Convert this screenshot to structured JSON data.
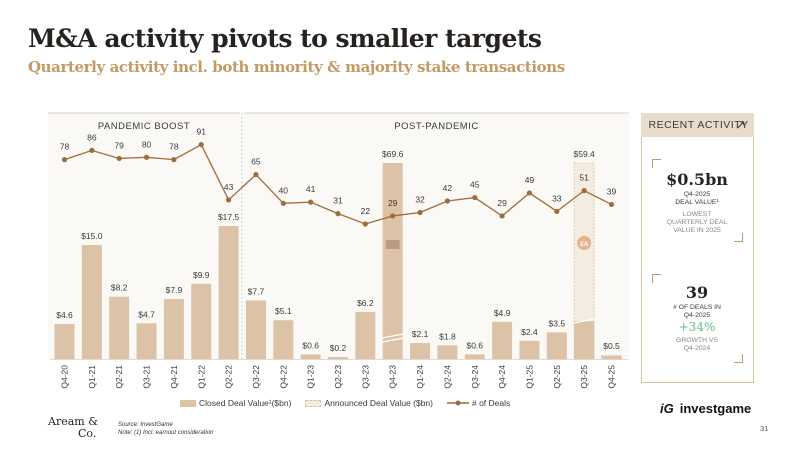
{
  "header": {
    "title": "M&A activity pivots to smaller targets",
    "subtitle": "Quarterly activity incl. both minority & majority stake transactions"
  },
  "chart_data": {
    "type": "bar",
    "sections": [
      {
        "label": "PANDEMIC BOOST",
        "range": [
          0,
          6
        ]
      },
      {
        "label": "POST-PANDEMIC",
        "range": [
          7,
          20
        ]
      }
    ],
    "categories": [
      "Q4-20",
      "Q1-21",
      "Q2-21",
      "Q3-21",
      "Q4-21",
      "Q1-22",
      "Q2-22",
      "Q3-22",
      "Q4-22",
      "Q1-23",
      "Q2-23",
      "Q3-23",
      "Q4-23",
      "Q1-24",
      "Q2-24",
      "Q3-24",
      "Q4-24",
      "Q1-25",
      "Q2-25",
      "Q3-25",
      "Q4-25"
    ],
    "series": [
      {
        "name": "Closed Deal Value¹($bn)",
        "kind": "bar",
        "values": [
          4.6,
          15.0,
          8.2,
          4.7,
          7.9,
          9.9,
          17.5,
          7.7,
          5.1,
          0.6,
          0.2,
          6.2,
          69.6,
          2.1,
          1.8,
          0.6,
          4.9,
          2.4,
          3.5,
          59.4,
          0.5
        ],
        "labels": [
          "$4.6",
          "$15.0",
          "$8.2",
          "$4.7",
          "$7.9",
          "$9.9",
          "$17.5",
          "$7.7",
          "$5.1",
          "$0.6",
          "$0.2",
          "$6.2",
          "$69.6",
          "$2.1",
          "$1.8",
          "$0.6",
          "$4.9",
          "$2.4",
          "$3.5",
          "$59.4",
          "$0.5"
        ]
      },
      {
        "name": "Announced Deal Value ($bn)",
        "kind": "bar-dashed",
        "applies_to": [
          "Q3-25",
          "Q4-25"
        ]
      },
      {
        "name": "# of Deals",
        "kind": "line",
        "values": [
          78,
          86,
          79,
          80,
          78,
          91,
          43,
          65,
          40,
          41,
          31,
          22,
          29,
          32,
          42,
          45,
          29,
          49,
          33,
          51,
          39
        ]
      }
    ],
    "broken_axis_bars": [
      "Q4-23",
      "Q3-25"
    ],
    "annotations": [
      {
        "category": "Q4-23",
        "logo": "Activision"
      },
      {
        "category": "Q3-25",
        "logo": "EA"
      }
    ]
  },
  "sidebar": {
    "title": "RECENT ACTIVITY",
    "stat1": {
      "value": "$0.5bn",
      "line1": "Q4-2025",
      "line2": "DEAL VALUE¹",
      "note1": "LOWEST",
      "note2": "QUARTERLY DEAL",
      "note3": "VALUE IN 2025"
    },
    "stat2": {
      "value": "39",
      "line1": "# OF DEALS IN",
      "line2": "Q4-2025",
      "growth": "+34%",
      "note1": "GROWTH VS",
      "note2": "Q4-2024"
    }
  },
  "footer": {
    "source": "Source: InvestGame",
    "note": "Note: (1) Incl. earnout consideration",
    "aream_logo_line1": "Aream &",
    "aream_logo_line2": "Co.",
    "investgame_mark": "iG",
    "investgame_name": "investgame",
    "page_number": "31"
  },
  "colors": {
    "bar": "#dcc2a7",
    "bar_dashed_fill": "#f4ebe1",
    "line": "#9e6d3a",
    "accent": "#c39a66",
    "section_bg": "#fbf9f6",
    "growth": "#5cc08a"
  }
}
